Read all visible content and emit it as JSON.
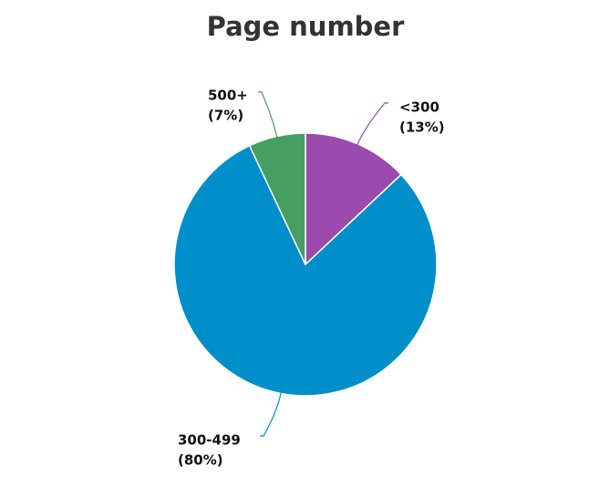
{
  "chart_data": {
    "type": "pie",
    "title": "Page number",
    "categories": [
      "<300",
      "300-499",
      "500+"
    ],
    "values": [
      13,
      80,
      7
    ],
    "value_labels": [
      "(13%)",
      "(80%)",
      "(7%)"
    ],
    "colors": [
      "#9b4aae",
      "#008fcb",
      "#459e62"
    ]
  }
}
